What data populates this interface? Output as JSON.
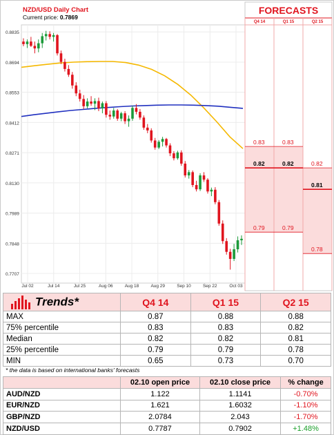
{
  "chart_data": {
    "type": "candlestick",
    "title": "NZD/USD Daily Chart",
    "current_price_label": "Current price:",
    "current_price": "0.7869",
    "yticks": [
      "0.8835",
      "0.8694",
      "0.8553",
      "0.8412",
      "0.8271",
      "0.8130",
      "0.7989",
      "0.7848",
      "0.7707"
    ],
    "ylim": [
      0.7662,
      0.8868
    ],
    "xticks": [
      "Jul 02",
      "Jul 14",
      "Jul 25",
      "Aug 06",
      "Aug 18",
      "Aug 29",
      "Sep 10",
      "Sep 22",
      "Oct 03"
    ],
    "candles": [
      {
        "o": 0.879,
        "h": 0.8805,
        "l": 0.8768,
        "c": 0.8778
      },
      {
        "o": 0.8778,
        "h": 0.88,
        "l": 0.876,
        "c": 0.879
      },
      {
        "o": 0.879,
        "h": 0.8812,
        "l": 0.8765,
        "c": 0.877
      },
      {
        "o": 0.877,
        "h": 0.879,
        "l": 0.8735,
        "c": 0.8758
      },
      {
        "o": 0.8758,
        "h": 0.88,
        "l": 0.874,
        "c": 0.8782
      },
      {
        "o": 0.8782,
        "h": 0.883,
        "l": 0.876,
        "c": 0.8815
      },
      {
        "o": 0.8815,
        "h": 0.884,
        "l": 0.8795,
        "c": 0.8825
      },
      {
        "o": 0.8825,
        "h": 0.8838,
        "l": 0.88,
        "c": 0.8812
      },
      {
        "o": 0.8812,
        "h": 0.883,
        "l": 0.879,
        "c": 0.882
      },
      {
        "o": 0.882,
        "h": 0.8825,
        "l": 0.8725,
        "c": 0.8735
      },
      {
        "o": 0.8735,
        "h": 0.8748,
        "l": 0.8685,
        "c": 0.8695
      },
      {
        "o": 0.8695,
        "h": 0.871,
        "l": 0.865,
        "c": 0.8662
      },
      {
        "o": 0.8662,
        "h": 0.868,
        "l": 0.8625,
        "c": 0.8635
      },
      {
        "o": 0.8635,
        "h": 0.8648,
        "l": 0.857,
        "c": 0.8585
      },
      {
        "o": 0.8585,
        "h": 0.86,
        "l": 0.8535,
        "c": 0.8548
      },
      {
        "o": 0.8548,
        "h": 0.8565,
        "l": 0.851,
        "c": 0.8522
      },
      {
        "o": 0.8522,
        "h": 0.854,
        "l": 0.8475,
        "c": 0.8488
      },
      {
        "o": 0.8488,
        "h": 0.8525,
        "l": 0.8478,
        "c": 0.851
      },
      {
        "o": 0.851,
        "h": 0.8535,
        "l": 0.849,
        "c": 0.85
      },
      {
        "o": 0.85,
        "h": 0.8525,
        "l": 0.847,
        "c": 0.8512
      },
      {
        "o": 0.8512,
        "h": 0.8528,
        "l": 0.8465,
        "c": 0.8478
      },
      {
        "o": 0.8478,
        "h": 0.851,
        "l": 0.8455,
        "c": 0.8502
      },
      {
        "o": 0.8502,
        "h": 0.8512,
        "l": 0.8435,
        "c": 0.8448
      },
      {
        "o": 0.8448,
        "h": 0.8468,
        "l": 0.8425,
        "c": 0.844
      },
      {
        "o": 0.844,
        "h": 0.848,
        "l": 0.843,
        "c": 0.8468
      },
      {
        "o": 0.8468,
        "h": 0.8475,
        "l": 0.842,
        "c": 0.843
      },
      {
        "o": 0.843,
        "h": 0.8462,
        "l": 0.8418,
        "c": 0.8455
      },
      {
        "o": 0.8455,
        "h": 0.8465,
        "l": 0.8405,
        "c": 0.8418
      },
      {
        "o": 0.8418,
        "h": 0.8445,
        "l": 0.8392,
        "c": 0.843
      },
      {
        "o": 0.843,
        "h": 0.849,
        "l": 0.842,
        "c": 0.848
      },
      {
        "o": 0.848,
        "h": 0.8498,
        "l": 0.845,
        "c": 0.8462
      },
      {
        "o": 0.8462,
        "h": 0.8475,
        "l": 0.8425,
        "c": 0.8435
      },
      {
        "o": 0.8435,
        "h": 0.8445,
        "l": 0.8378,
        "c": 0.8388
      },
      {
        "o": 0.8388,
        "h": 0.8405,
        "l": 0.8362,
        "c": 0.8375
      },
      {
        "o": 0.8375,
        "h": 0.8385,
        "l": 0.8318,
        "c": 0.8328
      },
      {
        "o": 0.8328,
        "h": 0.834,
        "l": 0.8285,
        "c": 0.8295
      },
      {
        "o": 0.8295,
        "h": 0.833,
        "l": 0.8288,
        "c": 0.8322
      },
      {
        "o": 0.8322,
        "h": 0.8345,
        "l": 0.83,
        "c": 0.8335
      },
      {
        "o": 0.8335,
        "h": 0.834,
        "l": 0.8295,
        "c": 0.8305
      },
      {
        "o": 0.8305,
        "h": 0.8315,
        "l": 0.8255,
        "c": 0.8268
      },
      {
        "o": 0.8268,
        "h": 0.8278,
        "l": 0.8235,
        "c": 0.8245
      },
      {
        "o": 0.8245,
        "h": 0.828,
        "l": 0.8238,
        "c": 0.8272
      },
      {
        "o": 0.8272,
        "h": 0.8282,
        "l": 0.821,
        "c": 0.822
      },
      {
        "o": 0.822,
        "h": 0.8232,
        "l": 0.8155,
        "c": 0.8165
      },
      {
        "o": 0.8165,
        "h": 0.819,
        "l": 0.815,
        "c": 0.818
      },
      {
        "o": 0.818,
        "h": 0.8188,
        "l": 0.811,
        "c": 0.812
      },
      {
        "o": 0.812,
        "h": 0.814,
        "l": 0.809,
        "c": 0.81
      },
      {
        "o": 0.81,
        "h": 0.8175,
        "l": 0.8092,
        "c": 0.8165
      },
      {
        "o": 0.8165,
        "h": 0.818,
        "l": 0.8135,
        "c": 0.8145
      },
      {
        "o": 0.8145,
        "h": 0.8152,
        "l": 0.808,
        "c": 0.809
      },
      {
        "o": 0.809,
        "h": 0.8108,
        "l": 0.8068,
        "c": 0.8098
      },
      {
        "o": 0.8098,
        "h": 0.811,
        "l": 0.803,
        "c": 0.804
      },
      {
        "o": 0.804,
        "h": 0.805,
        "l": 0.793,
        "c": 0.794
      },
      {
        "o": 0.794,
        "h": 0.7955,
        "l": 0.7845,
        "c": 0.7858
      },
      {
        "o": 0.7858,
        "h": 0.7872,
        "l": 0.7795,
        "c": 0.7808
      },
      {
        "o": 0.7808,
        "h": 0.7822,
        "l": 0.7725,
        "c": 0.7775
      },
      {
        "o": 0.7775,
        "h": 0.7845,
        "l": 0.7765,
        "c": 0.782
      },
      {
        "o": 0.782,
        "h": 0.788,
        "l": 0.7805,
        "c": 0.7862
      },
      {
        "o": 0.7862,
        "h": 0.7885,
        "l": 0.784,
        "c": 0.7869
      }
    ],
    "ma_short": [
      0.867,
      0.8677,
      0.8684,
      0.869,
      0.8694,
      0.8696,
      0.8697,
      0.8697,
      0.8692,
      0.868,
      0.866,
      0.863,
      0.859,
      0.854,
      0.848,
      0.8415,
      0.8345,
      0.829
    ],
    "ma_long": [
      0.844,
      0.8448,
      0.8455,
      0.8462,
      0.8468,
      0.8473,
      0.8478,
      0.8482,
      0.8486,
      0.8489,
      0.8491,
      0.8493,
      0.8494,
      0.8494,
      0.8493,
      0.8491,
      0.8488,
      0.8483,
      0.8478
    ],
    "forecast_header": "FORECASTS",
    "forecast_quarters": [
      "Q4 14",
      "Q1 15",
      "Q2 15"
    ],
    "forecasts": [
      {
        "quarter": "Q4 14",
        "p75": 0.83,
        "median": 0.82,
        "p25": 0.79
      },
      {
        "quarter": "Q1 15",
        "p75": 0.83,
        "median": 0.82,
        "p25": 0.79
      },
      {
        "quarter": "Q2 15",
        "p75": 0.82,
        "median": 0.81,
        "p25": 0.78
      }
    ],
    "forecast_labels": [
      {
        "p75": "0.83",
        "median": "0.82",
        "p25": "0.79"
      },
      {
        "p75": "0.83",
        "median": "0.82",
        "p25": "0.79"
      },
      {
        "p75": "0.82",
        "median": "0.81",
        "p25": "0.78"
      }
    ],
    "colors": {
      "bull": "#1c9a3a",
      "bear": "#e0141e",
      "ma_short": "#f5b800",
      "ma_long": "#1f2fbf",
      "forecast_fill": "#fbdcdc",
      "forecast_line": "#e0141e"
    }
  },
  "trends": {
    "title": "Trends*",
    "columns": [
      "Q4 14",
      "Q1 15",
      "Q2 15"
    ],
    "rows": [
      {
        "label": "MAX",
        "values": [
          "0.87",
          "0.88",
          "0.88"
        ]
      },
      {
        "label": "75% percentile",
        "values": [
          "0.83",
          "0.83",
          "0.82"
        ]
      },
      {
        "label": "Median",
        "values": [
          "0.82",
          "0.82",
          "0.81"
        ]
      },
      {
        "label": "25% percentile",
        "values": [
          "0.79",
          "0.79",
          "0.78"
        ]
      },
      {
        "label": "MIN",
        "values": [
          "0.65",
          "0.73",
          "0.70"
        ]
      }
    ],
    "footnote": "* the data is based on international banks' forecasts"
  },
  "pct": {
    "headers": [
      "",
      "02.10 open price",
      "02.10 close price",
      "% change"
    ],
    "rows": [
      {
        "pair": "AUD/NZD",
        "open": "1.122",
        "close": "1.1141",
        "change": "-0.70%",
        "dir": "neg"
      },
      {
        "pair": "EUR/NZD",
        "open": "1.621",
        "close": "1.6032",
        "change": "-1.10%",
        "dir": "neg"
      },
      {
        "pair": "GBP/NZD",
        "open": "2.0784",
        "close": "2.043",
        "change": "-1.70%",
        "dir": "neg"
      },
      {
        "pair": "NZD/USD",
        "open": "0.7787",
        "close": "0.7902",
        "change": "+1.48%",
        "dir": "pos"
      }
    ]
  }
}
